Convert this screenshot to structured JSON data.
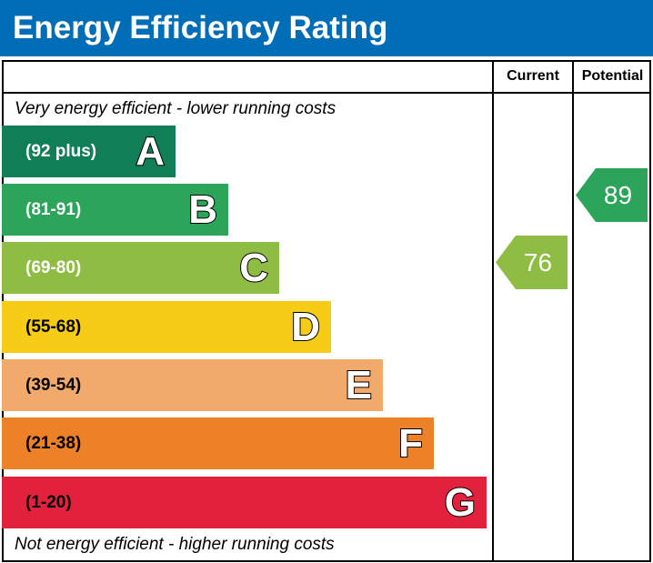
{
  "title": "Energy Efficiency Rating",
  "columns": {
    "current": "Current",
    "potential": "Potential"
  },
  "top_note": "Very energy efficient - lower running costs",
  "bottom_note": "Not energy efficient - higher running costs",
  "chart_data": {
    "type": "bar",
    "bands": [
      {
        "letter": "A",
        "range": "(92 plus)",
        "color": "#107e56"
      },
      {
        "letter": "B",
        "range": "(81-91)",
        "color": "#2ca55b"
      },
      {
        "letter": "C",
        "range": "(69-80)",
        "color": "#8fbd44"
      },
      {
        "letter": "D",
        "range": "(55-68)",
        "color": "#f6cc17"
      },
      {
        "letter": "E",
        "range": "(39-54)",
        "color": "#f2aa6c"
      },
      {
        "letter": "F",
        "range": "(21-38)",
        "color": "#ed8127"
      },
      {
        "letter": "G",
        "range": "(1-20)",
        "color": "#e2223d"
      }
    ],
    "current": {
      "value": "76",
      "band": "C",
      "color": "#8fbd44"
    },
    "potential": {
      "value": "89",
      "band": "B",
      "color": "#2ca55b"
    }
  }
}
